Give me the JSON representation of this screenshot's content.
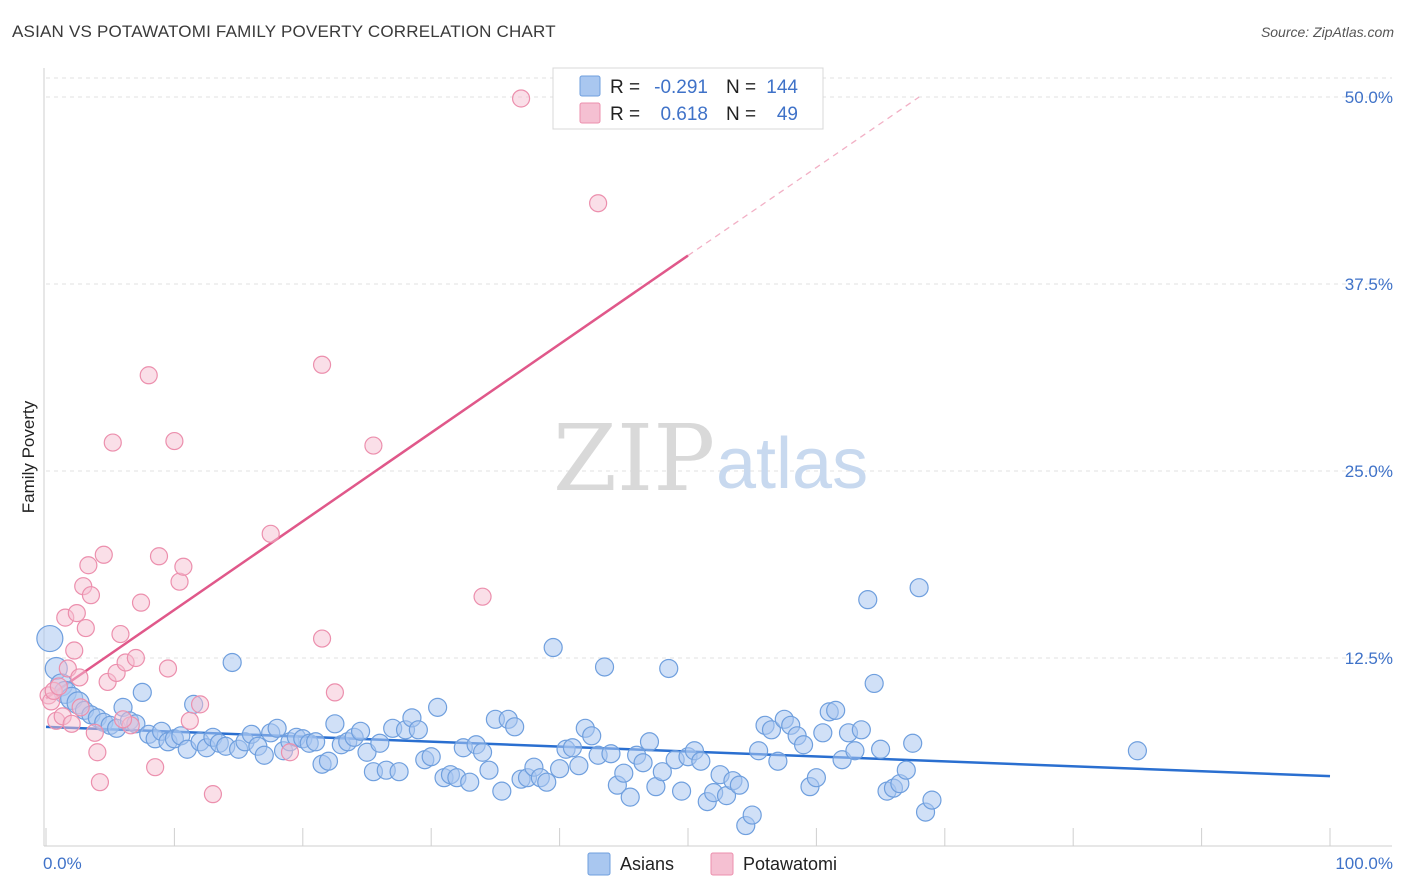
{
  "title": "ASIAN VS POTAWATOMI FAMILY POVERTY CORRELATION CHART",
  "source": "Source: ZipAtlas.com",
  "colors": {
    "asian": "#6f9fde",
    "asian_fill": "#a9c7f0",
    "asian_line": "#2a6fd0",
    "potawatomi": "#ec8fad",
    "potawatomi_fill": "#f5c0d2",
    "potawatomi_line": "#e0588a",
    "tick_blue": "#3f72c8"
  },
  "watermark": {
    "zip": "ZIP",
    "atlas": "atlas"
  },
  "legend": {
    "r_label": "R =",
    "n_label": "N =",
    "asian_r": "-0.291",
    "asian_n": "144",
    "potawatomi_r": "0.618",
    "potawatomi_n": "49"
  },
  "bottom_legend": {
    "asian": "Asians",
    "potawatomi": "Potawatomi"
  },
  "chart_data": {
    "type": "scatter",
    "title": "ASIAN VS POTAWATOMI FAMILY POVERTY CORRELATION CHART",
    "xlabel": "",
    "ylabel": "Family Poverty",
    "xlim": [
      0,
      100
    ],
    "ylim": [
      0,
      50
    ],
    "x_tick_labels": [
      "0.0%",
      "100.0%"
    ],
    "y_tick_labels": [
      "12.5%",
      "25.0%",
      "37.5%",
      "50.0%"
    ],
    "y_ticks": [
      12.5,
      25.0,
      37.5,
      50.0
    ],
    "grid": true,
    "legend_position": "top-center",
    "series": [
      {
        "name": "Asians",
        "r": -0.291,
        "n": 144,
        "trend": {
          "x0": 0,
          "y0": 7.9,
          "x1": 100,
          "y1": 4.6
        },
        "points": [
          [
            0.3,
            13.8
          ],
          [
            0.8,
            11.8
          ],
          [
            1.2,
            10.7
          ],
          [
            1.5,
            10.2
          ],
          [
            2.0,
            9.8
          ],
          [
            2.5,
            9.5
          ],
          [
            3.0,
            9.0
          ],
          [
            3.5,
            8.7
          ],
          [
            4.0,
            8.5
          ],
          [
            4.5,
            8.2
          ],
          [
            5.0,
            8.0
          ],
          [
            5.5,
            7.8
          ],
          [
            6.0,
            9.2
          ],
          [
            6.5,
            8.3
          ],
          [
            7.0,
            8.1
          ],
          [
            7.5,
            10.2
          ],
          [
            8.0,
            7.4
          ],
          [
            8.5,
            7.1
          ],
          [
            9.0,
            7.6
          ],
          [
            9.5,
            6.9
          ],
          [
            10.0,
            7.1
          ],
          [
            10.5,
            7.3
          ],
          [
            11.0,
            6.4
          ],
          [
            11.5,
            9.4
          ],
          [
            12.0,
            6.9
          ],
          [
            12.5,
            6.5
          ],
          [
            13.0,
            7.2
          ],
          [
            13.5,
            6.8
          ],
          [
            14.0,
            6.6
          ],
          [
            14.5,
            12.2
          ],
          [
            15.0,
            6.4
          ],
          [
            15.5,
            6.9
          ],
          [
            16.0,
            7.4
          ],
          [
            16.5,
            6.6
          ],
          [
            17.0,
            6.0
          ],
          [
            17.5,
            7.5
          ],
          [
            18.0,
            7.8
          ],
          [
            18.5,
            6.3
          ],
          [
            19.0,
            6.9
          ],
          [
            19.5,
            7.2
          ],
          [
            20.0,
            7.1
          ],
          [
            20.5,
            6.8
          ],
          [
            21.0,
            6.9
          ],
          [
            21.5,
            5.4
          ],
          [
            22.0,
            5.6
          ],
          [
            22.5,
            8.1
          ],
          [
            23.0,
            6.7
          ],
          [
            23.5,
            6.9
          ],
          [
            24.0,
            7.2
          ],
          [
            24.5,
            7.6
          ],
          [
            25.0,
            6.2
          ],
          [
            25.5,
            4.9
          ],
          [
            26.0,
            6.8
          ],
          [
            26.5,
            5.0
          ],
          [
            27.0,
            7.8
          ],
          [
            27.5,
            4.9
          ],
          [
            28.0,
            7.7
          ],
          [
            28.5,
            8.5
          ],
          [
            29.0,
            7.7
          ],
          [
            29.5,
            5.7
          ],
          [
            30.0,
            5.9
          ],
          [
            30.5,
            9.2
          ],
          [
            31.0,
            4.5
          ],
          [
            31.5,
            4.7
          ],
          [
            32.0,
            4.5
          ],
          [
            32.5,
            6.5
          ],
          [
            33.0,
            4.2
          ],
          [
            33.5,
            6.7
          ],
          [
            34.0,
            6.2
          ],
          [
            34.5,
            5.0
          ],
          [
            35.0,
            8.4
          ],
          [
            35.5,
            3.6
          ],
          [
            36.0,
            8.4
          ],
          [
            36.5,
            7.9
          ],
          [
            37.0,
            4.4
          ],
          [
            37.5,
            4.5
          ],
          [
            38.0,
            5.2
          ],
          [
            38.5,
            4.5
          ],
          [
            39.0,
            4.2
          ],
          [
            39.5,
            13.2
          ],
          [
            40.0,
            5.1
          ],
          [
            40.5,
            6.4
          ],
          [
            41.0,
            6.5
          ],
          [
            41.5,
            5.3
          ],
          [
            42.0,
            7.8
          ],
          [
            42.5,
            7.3
          ],
          [
            43.0,
            6.0
          ],
          [
            43.5,
            11.9
          ],
          [
            44.0,
            6.1
          ],
          [
            44.5,
            4.0
          ],
          [
            45.0,
            4.8
          ],
          [
            45.5,
            3.2
          ],
          [
            46.0,
            6.0
          ],
          [
            46.5,
            5.5
          ],
          [
            47.0,
            6.9
          ],
          [
            47.5,
            3.9
          ],
          [
            48.0,
            4.9
          ],
          [
            48.5,
            11.8
          ],
          [
            49.0,
            5.7
          ],
          [
            49.5,
            3.6
          ],
          [
            50.0,
            5.9
          ],
          [
            50.5,
            6.3
          ],
          [
            51.0,
            5.6
          ],
          [
            51.5,
            2.9
          ],
          [
            52.0,
            3.5
          ],
          [
            52.5,
            4.7
          ],
          [
            53.0,
            3.3
          ],
          [
            53.5,
            4.3
          ],
          [
            54.0,
            4.0
          ],
          [
            54.5,
            1.3
          ],
          [
            55.0,
            2.0
          ],
          [
            55.5,
            6.3
          ],
          [
            56.0,
            8.0
          ],
          [
            56.5,
            7.7
          ],
          [
            57.0,
            5.6
          ],
          [
            57.5,
            8.4
          ],
          [
            58.0,
            8.0
          ],
          [
            58.5,
            7.3
          ],
          [
            59.0,
            6.7
          ],
          [
            59.5,
            3.9
          ],
          [
            60.0,
            4.5
          ],
          [
            60.5,
            7.5
          ],
          [
            61.0,
            8.9
          ],
          [
            61.5,
            9.0
          ],
          [
            62.0,
            5.7
          ],
          [
            62.5,
            7.5
          ],
          [
            63.0,
            6.3
          ],
          [
            63.5,
            7.7
          ],
          [
            64.0,
            16.4
          ],
          [
            64.5,
            10.8
          ],
          [
            65.0,
            6.4
          ],
          [
            65.5,
            3.6
          ],
          [
            66.0,
            3.8
          ],
          [
            66.5,
            4.1
          ],
          [
            67.0,
            5.0
          ],
          [
            67.5,
            6.8
          ],
          [
            68.0,
            17.2
          ],
          [
            68.5,
            2.2
          ],
          [
            69.0,
            3.0
          ],
          [
            85.0,
            6.3
          ]
        ]
      },
      {
        "name": "Potawatomi",
        "r": 0.618,
        "n": 49,
        "trend": {
          "x0": 0,
          "y0": 9.8,
          "x1": 50,
          "y1": 39.4
        },
        "trend_dashed_to": {
          "x": 68,
          "y": 50.0
        },
        "points": [
          [
            0.2,
            10.0
          ],
          [
            0.4,
            9.6
          ],
          [
            0.6,
            10.3
          ],
          [
            0.8,
            8.3
          ],
          [
            1.0,
            10.6
          ],
          [
            1.3,
            8.6
          ],
          [
            1.5,
            15.2
          ],
          [
            1.7,
            11.8
          ],
          [
            2.0,
            8.1
          ],
          [
            2.2,
            13.0
          ],
          [
            2.4,
            15.5
          ],
          [
            2.6,
            11.2
          ],
          [
            2.9,
            17.3
          ],
          [
            3.1,
            14.5
          ],
          [
            3.3,
            18.7
          ],
          [
            3.5,
            16.7
          ],
          [
            3.8,
            7.5
          ],
          [
            4.0,
            6.2
          ],
          [
            4.2,
            4.2
          ],
          [
            4.5,
            19.4
          ],
          [
            4.8,
            10.9
          ],
          [
            5.2,
            26.9
          ],
          [
            5.5,
            11.5
          ],
          [
            5.8,
            14.1
          ],
          [
            6.2,
            12.2
          ],
          [
            6.6,
            8.0
          ],
          [
            7.0,
            12.5
          ],
          [
            7.4,
            16.2
          ],
          [
            8.0,
            31.4
          ],
          [
            8.5,
            5.2
          ],
          [
            8.8,
            19.3
          ],
          [
            9.5,
            11.8
          ],
          [
            10.0,
            27.0
          ],
          [
            10.4,
            17.6
          ],
          [
            10.7,
            18.6
          ],
          [
            11.2,
            8.3
          ],
          [
            12.0,
            9.4
          ],
          [
            13.0,
            3.4
          ],
          [
            17.5,
            20.8
          ],
          [
            19.0,
            6.2
          ],
          [
            21.5,
            32.1
          ],
          [
            21.5,
            13.8
          ],
          [
            22.5,
            10.2
          ],
          [
            25.5,
            26.7
          ],
          [
            34.0,
            16.6
          ],
          [
            37.0,
            49.9
          ],
          [
            43.0,
            42.9
          ],
          [
            6.0,
            8.4
          ],
          [
            2.7,
            9.2
          ]
        ]
      }
    ]
  }
}
